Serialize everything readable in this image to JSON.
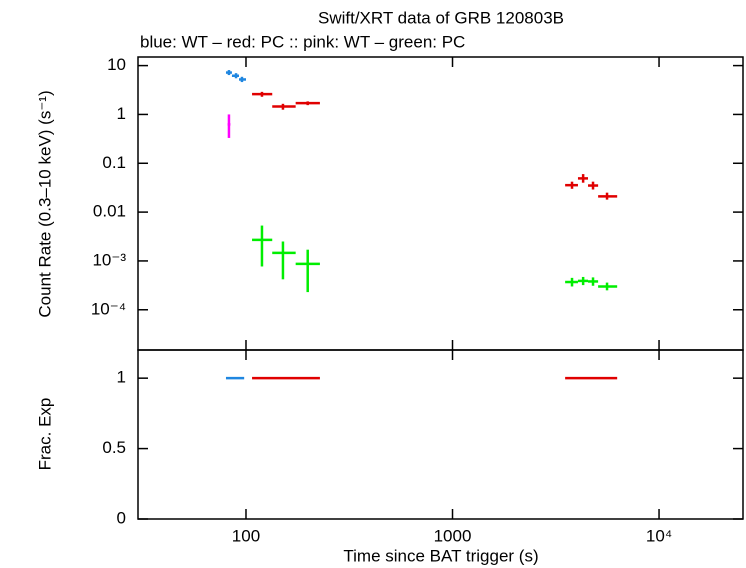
{
  "chart_data": [
    {
      "type": "errorbar",
      "title": "Swift/XRT data of GRB 120803B",
      "subtitle": "blue: WT  – red: PC  :: pink: WT  – green: PC",
      "y_label": "Count Rate (0.3–10 keV) (s⁻¹)",
      "ylog": true,
      "ylim": [
        1.5e-05,
        15
      ],
      "yticks": [
        10,
        1,
        0.1,
        0.01,
        {
          "value": 0.001,
          "label": "10⁻³"
        },
        {
          "value": 0.0001,
          "label": "10⁻⁴"
        }
      ],
      "series": [
        {
          "color": "#1f86e0",
          "x": [
            82.7,
            89.5,
            95.6
          ],
          "x_low": [
            80,
            85.5,
            92.5
          ],
          "x_high": [
            85.5,
            92.5,
            100
          ],
          "values": [
            7.2,
            6.2,
            5.2
          ],
          "y_low": [
            6.4,
            5.5,
            4.6
          ],
          "y_high": [
            8.1,
            7.0,
            5.9
          ]
        },
        {
          "color": "#e00000",
          "x": [
            119.5,
            151,
            199,
            3790,
            4290,
            4790,
            5600
          ],
          "x_low": [
            107,
            134,
            174,
            3510,
            4050,
            4530,
            5070
          ],
          "x_high": [
            134,
            174,
            228,
            4050,
            4530,
            5070,
            6270
          ],
          "values": [
            2.6,
            1.45,
            1.7,
            0.0356,
            0.049,
            0.035,
            0.021
          ],
          "y_low": [
            2.3,
            1.25,
            1.55,
            0.03,
            0.04,
            0.029,
            0.018
          ],
          "y_high": [
            2.9,
            1.65,
            1.85,
            0.042,
            0.06,
            0.042,
            0.025
          ]
        },
        {
          "color": "#ff00ff",
          "x": [
            82.7
          ],
          "x_low": [
            81.5
          ],
          "x_high": [
            84
          ],
          "values": [
            0.625
          ],
          "y_low": [
            0.33
          ],
          "y_high": [
            1.0
          ]
        },
        {
          "color": "#00ee00",
          "x": [
            119.5,
            151,
            199,
            3790,
            4290,
            4790,
            5600
          ],
          "x_low": [
            107,
            134,
            174,
            3510,
            4050,
            4530,
            5070
          ],
          "x_high": [
            134,
            174,
            228,
            4050,
            4530,
            5070,
            6270
          ],
          "values": [
            0.0027,
            0.00146,
            0.00087,
            0.00037,
            0.00039,
            0.00038,
            0.0003
          ],
          "y_low": [
            0.00077,
            0.00042,
            0.00023,
            0.0003,
            0.00032,
            0.00031,
            0.00025
          ],
          "y_high": [
            0.0053,
            0.0025,
            0.0017,
            0.00045,
            0.00047,
            0.00046,
            0.00036
          ]
        }
      ]
    },
    {
      "type": "errorbar",
      "y_label": "Frac. Exp",
      "x_label": "Time since BAT trigger (s)",
      "xlog": true,
      "xlim": [
        30,
        25500
      ],
      "xticks": [
        100,
        1000,
        {
          "value": 10000,
          "label": "10⁴"
        }
      ],
      "ylim": [
        0,
        1.2
      ],
      "yticks": [
        0,
        0.5,
        1
      ],
      "series": [
        {
          "color": "#1f86e0",
          "x_low": [
            80
          ],
          "x_high": [
            98
          ],
          "values": [
            1
          ]
        },
        {
          "color": "#e00000",
          "x_low": [
            107,
            3510
          ],
          "x_high": [
            228,
            6270
          ],
          "values": [
            1,
            1
          ]
        }
      ]
    }
  ]
}
